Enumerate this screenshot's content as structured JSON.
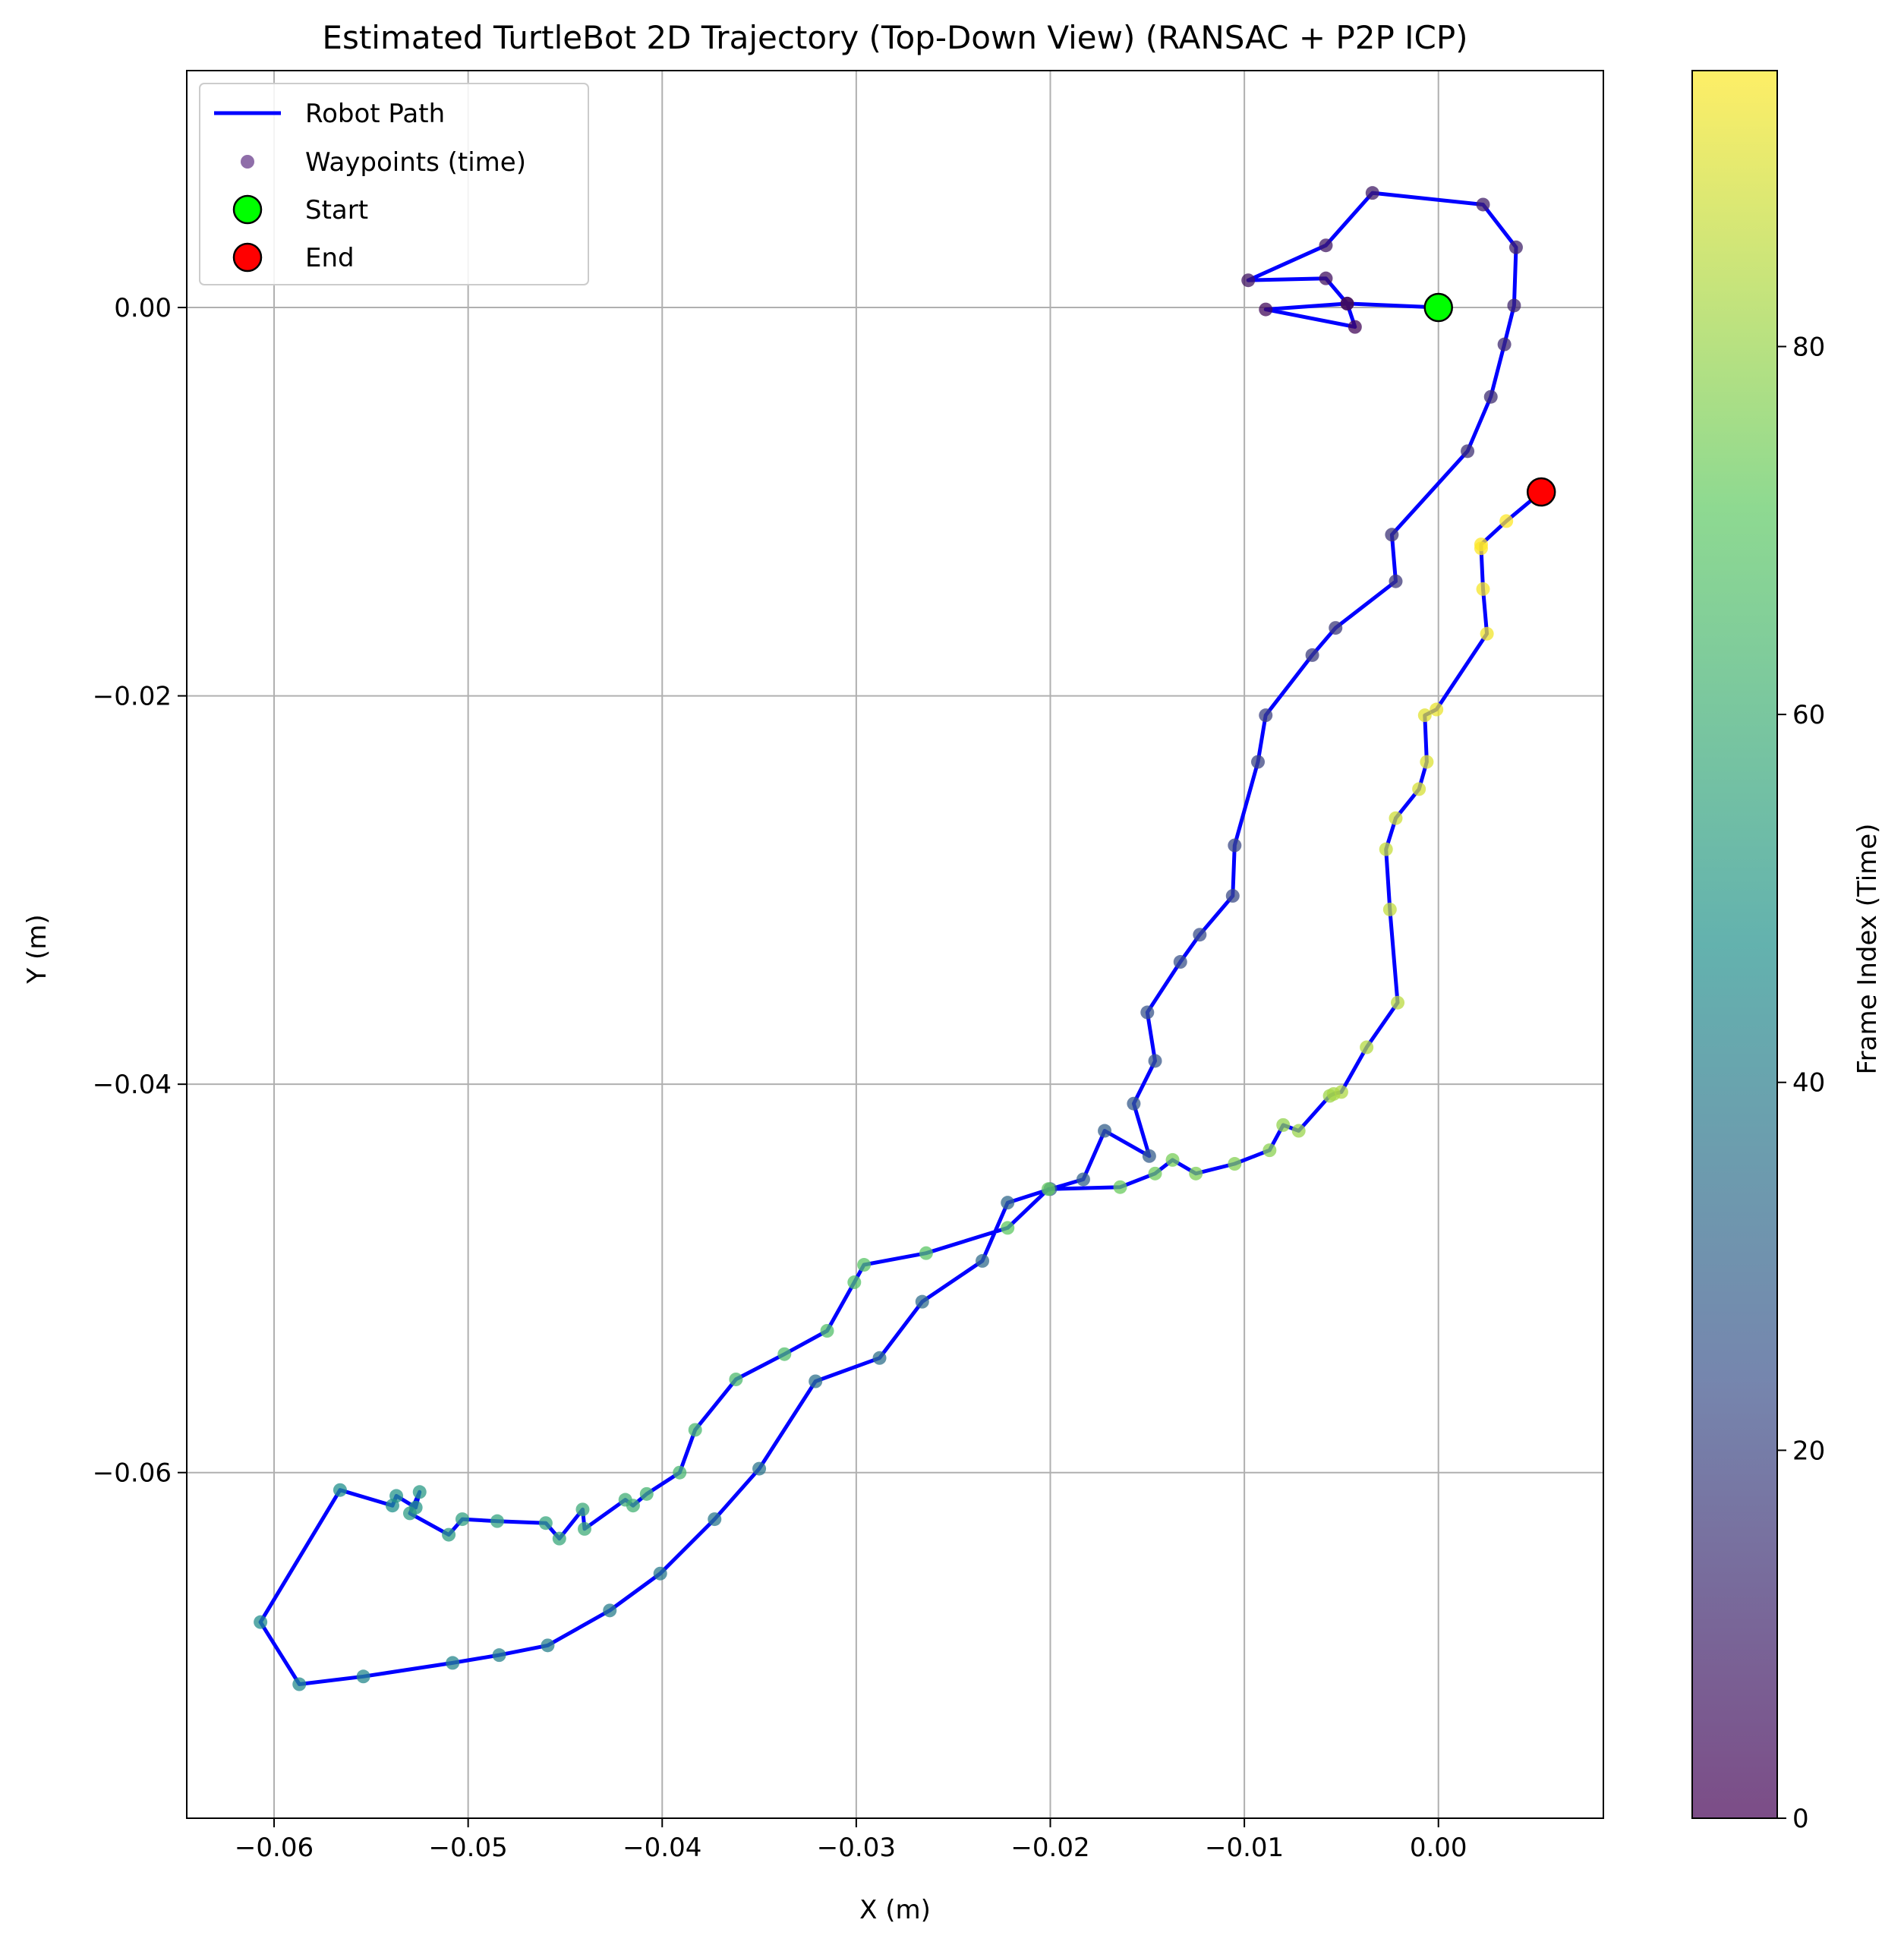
{
  "chart_data": {
    "type": "scatter",
    "title": "Estimated TurtleBot 2D Trajectory (Top-Down View) (RANSAC + P2P ICP)",
    "xlabel": "X (m)",
    "ylabel": "Y (m)",
    "xlim": [
      -0.0645,
      0.0085
    ],
    "ylim": [
      -0.0778,
      0.0122
    ],
    "x_ticks": [
      -0.06,
      -0.05,
      -0.04,
      -0.03,
      -0.02,
      -0.01,
      0.0
    ],
    "x_tick_labels": [
      "−0.06",
      "−0.05",
      "−0.04",
      "−0.03",
      "−0.02",
      "−0.01",
      "0.00"
    ],
    "y_ticks": [
      0.0,
      -0.02,
      -0.04,
      -0.06
    ],
    "y_tick_labels": [
      "0.00",
      "−0.02",
      "−0.04",
      "−0.06"
    ],
    "grid": true,
    "legend_position": "top-left",
    "legend": [
      {
        "label": "Robot Path",
        "kind": "line",
        "color": "#0000ff"
      },
      {
        "label": "Waypoints (time)",
        "kind": "marker",
        "color": "#6a3e8c"
      },
      {
        "label": "Start",
        "kind": "marker",
        "color": "#00ff00"
      },
      {
        "label": "End",
        "kind": "marker",
        "color": "#ff0000"
      }
    ],
    "colorbar": {
      "label": "Frame Index (Time)",
      "colormap": "viridis",
      "vmin": 0,
      "vmax": 95,
      "ticks": [
        0,
        20,
        40,
        60,
        80
      ],
      "tick_labels": [
        "0",
        "20",
        "40",
        "60",
        "80"
      ]
    },
    "series": [
      {
        "name": "Robot Path",
        "color": "#0000ff",
        "x": [
          0.0,
          -0.0047,
          -0.0043,
          -0.0089,
          -0.0047,
          -0.0058,
          -0.0098,
          -0.0058,
          -0.0034,
          0.0023,
          0.004,
          0.0039,
          0.0034,
          0.0027,
          0.0015,
          -0.0024,
          -0.0022,
          -0.0053,
          -0.0065,
          -0.0089,
          -0.0093,
          -0.0105,
          -0.0106,
          -0.0123,
          -0.0133,
          -0.015,
          -0.0146,
          -0.0157,
          -0.0149,
          -0.0172,
          -0.0183,
          -0.02,
          -0.0222,
          -0.0235,
          -0.0266,
          -0.0288,
          -0.0321,
          -0.035,
          -0.0373,
          -0.0401,
          -0.0427,
          -0.0459,
          -0.0484,
          -0.0508,
          -0.0554,
          -0.0587,
          -0.0607,
          -0.0566,
          -0.0539,
          -0.0537,
          -0.0527,
          -0.0525,
          -0.053,
          -0.051,
          -0.0503,
          -0.0485,
          -0.046,
          -0.0453,
          -0.0441,
          -0.044,
          -0.0419,
          -0.0415,
          -0.0408,
          -0.0391,
          -0.0383,
          -0.0362,
          -0.0337,
          -0.0315,
          -0.0301,
          -0.0296,
          -0.0264,
          -0.0222,
          -0.0201,
          -0.0164,
          -0.0146,
          -0.0137,
          -0.0125,
          -0.0105,
          -0.0087,
          -0.008,
          -0.0072,
          -0.0056,
          -0.0054,
          -0.005,
          -0.0037,
          -0.0021,
          -0.0025,
          -0.0027,
          -0.0022,
          -0.001,
          -0.0006,
          -0.0007,
          -0.0001,
          0.0025,
          0.0023,
          0.0022,
          0.0022,
          0.0035,
          0.0053
        ],
        "y": [
          0.0,
          0.0002,
          -0.001,
          -0.0001,
          0.0002,
          0.0015,
          0.0014,
          0.0032,
          0.0059,
          0.0053,
          0.0031,
          0.0001,
          -0.0019,
          -0.0046,
          -0.0074,
          -0.0117,
          -0.0141,
          -0.0165,
          -0.0179,
          -0.021,
          -0.0234,
          -0.0277,
          -0.0303,
          -0.0323,
          -0.0337,
          -0.0363,
          -0.0388,
          -0.041,
          -0.0437,
          -0.0424,
          -0.0449,
          -0.0454,
          -0.0461,
          -0.0491,
          -0.0512,
          -0.0541,
          -0.0553,
          -0.0598,
          -0.0624,
          -0.0652,
          -0.0671,
          -0.0689,
          -0.0694,
          -0.0698,
          -0.0705,
          -0.0709,
          -0.0677,
          -0.0609,
          -0.0617,
          -0.0612,
          -0.0618,
          -0.061,
          -0.0621,
          -0.0632,
          -0.0624,
          -0.0625,
          -0.0626,
          -0.0634,
          -0.0619,
          -0.0629,
          -0.0614,
          -0.0617,
          -0.0611,
          -0.06,
          -0.0578,
          -0.0552,
          -0.0539,
          -0.0527,
          -0.0502,
          -0.0493,
          -0.0487,
          -0.0474,
          -0.0454,
          -0.0453,
          -0.0446,
          -0.0439,
          -0.0446,
          -0.0441,
          -0.0434,
          -0.0421,
          -0.0424,
          -0.0406,
          -0.0405,
          -0.0404,
          -0.0381,
          -0.0358,
          -0.031,
          -0.0279,
          -0.0263,
          -0.0248,
          -0.0234,
          -0.021,
          -0.0207,
          -0.0168,
          -0.0145,
          -0.0124,
          -0.0122,
          -0.011,
          -0.0095
        ]
      },
      {
        "name": "Waypoints (time)",
        "x": [
          0.0,
          -0.0047,
          -0.0043,
          -0.0089,
          -0.0047,
          -0.0058,
          -0.0098,
          -0.0058,
          -0.0034,
          0.0023,
          0.004,
          0.0039,
          0.0034,
          0.0027,
          0.0015,
          -0.0024,
          -0.0022,
          -0.0053,
          -0.0065,
          -0.0089,
          -0.0093,
          -0.0105,
          -0.0106,
          -0.0123,
          -0.0133,
          -0.015,
          -0.0146,
          -0.0157,
          -0.0149,
          -0.0172,
          -0.0183,
          -0.02,
          -0.0222,
          -0.0235,
          -0.0266,
          -0.0288,
          -0.0321,
          -0.035,
          -0.0373,
          -0.0401,
          -0.0427,
          -0.0459,
          -0.0484,
          -0.0508,
          -0.0554,
          -0.0587,
          -0.0607,
          -0.0566,
          -0.0539,
          -0.0537,
          -0.0527,
          -0.0525,
          -0.053,
          -0.051,
          -0.0503,
          -0.0485,
          -0.046,
          -0.0453,
          -0.0441,
          -0.044,
          -0.0419,
          -0.0415,
          -0.0408,
          -0.0391,
          -0.0383,
          -0.0362,
          -0.0337,
          -0.0315,
          -0.0301,
          -0.0296,
          -0.0264,
          -0.0222,
          -0.0201,
          -0.0164,
          -0.0146,
          -0.0137,
          -0.0125,
          -0.0105,
          -0.0087,
          -0.008,
          -0.0072,
          -0.0056,
          -0.0054,
          -0.005,
          -0.0037,
          -0.0021,
          -0.0025,
          -0.0027,
          -0.0022,
          -0.001,
          -0.0006,
          -0.0007,
          -0.0001,
          0.0025,
          0.0023,
          0.0022,
          0.0022,
          0.0035,
          0.0053
        ],
        "y": [
          0.0,
          0.0002,
          -0.001,
          -0.0001,
          0.0002,
          0.0015,
          0.0014,
          0.0032,
          0.0059,
          0.0053,
          0.0031,
          0.0001,
          -0.0019,
          -0.0046,
          -0.0074,
          -0.0117,
          -0.0141,
          -0.0165,
          -0.0179,
          -0.021,
          -0.0234,
          -0.0277,
          -0.0303,
          -0.0323,
          -0.0337,
          -0.0363,
          -0.0388,
          -0.041,
          -0.0437,
          -0.0424,
          -0.0449,
          -0.0454,
          -0.0461,
          -0.0491,
          -0.0512,
          -0.0541,
          -0.0553,
          -0.0598,
          -0.0624,
          -0.0652,
          -0.0671,
          -0.0689,
          -0.0694,
          -0.0698,
          -0.0705,
          -0.0709,
          -0.0677,
          -0.0609,
          -0.0617,
          -0.0612,
          -0.0618,
          -0.061,
          -0.0621,
          -0.0632,
          -0.0624,
          -0.0625,
          -0.0626,
          -0.0634,
          -0.0619,
          -0.0629,
          -0.0614,
          -0.0617,
          -0.0611,
          -0.06,
          -0.0578,
          -0.0552,
          -0.0539,
          -0.0527,
          -0.0502,
          -0.0493,
          -0.0487,
          -0.0474,
          -0.0454,
          -0.0453,
          -0.0446,
          -0.0439,
          -0.0446,
          -0.0441,
          -0.0434,
          -0.0421,
          -0.0424,
          -0.0406,
          -0.0405,
          -0.0404,
          -0.0381,
          -0.0358,
          -0.031,
          -0.0279,
          -0.0263,
          -0.0248,
          -0.0234,
          -0.021,
          -0.0207,
          -0.0168,
          -0.0145,
          -0.0124,
          -0.0122,
          -0.011,
          -0.0095
        ],
        "frame_index": [
          0,
          1,
          2,
          3,
          4,
          5,
          6,
          7,
          8,
          9,
          10,
          11,
          12,
          13,
          14,
          15,
          16,
          17,
          18,
          19,
          20,
          21,
          22,
          23,
          24,
          25,
          26,
          27,
          28,
          29,
          30,
          31,
          32,
          33,
          34,
          35,
          36,
          37,
          38,
          39,
          40,
          41,
          42,
          43,
          44,
          45,
          46,
          47,
          48,
          49,
          50,
          51,
          52,
          53,
          54,
          55,
          56,
          57,
          58,
          59,
          60,
          61,
          62,
          63,
          64,
          65,
          66,
          67,
          68,
          69,
          70,
          71,
          72,
          73,
          74,
          75,
          76,
          77,
          78,
          79,
          80,
          81,
          82,
          83,
          84,
          85,
          86,
          87,
          88,
          89,
          90,
          91,
          92,
          93,
          94,
          95,
          96,
          97,
          98
        ]
      },
      {
        "name": "Start",
        "color": "#00ff00",
        "x": [
          0.0
        ],
        "y": [
          0.0
        ]
      },
      {
        "name": "End",
        "color": "#ff0000",
        "x": [
          0.0053
        ],
        "y": [
          -0.0095
        ]
      }
    ]
  }
}
